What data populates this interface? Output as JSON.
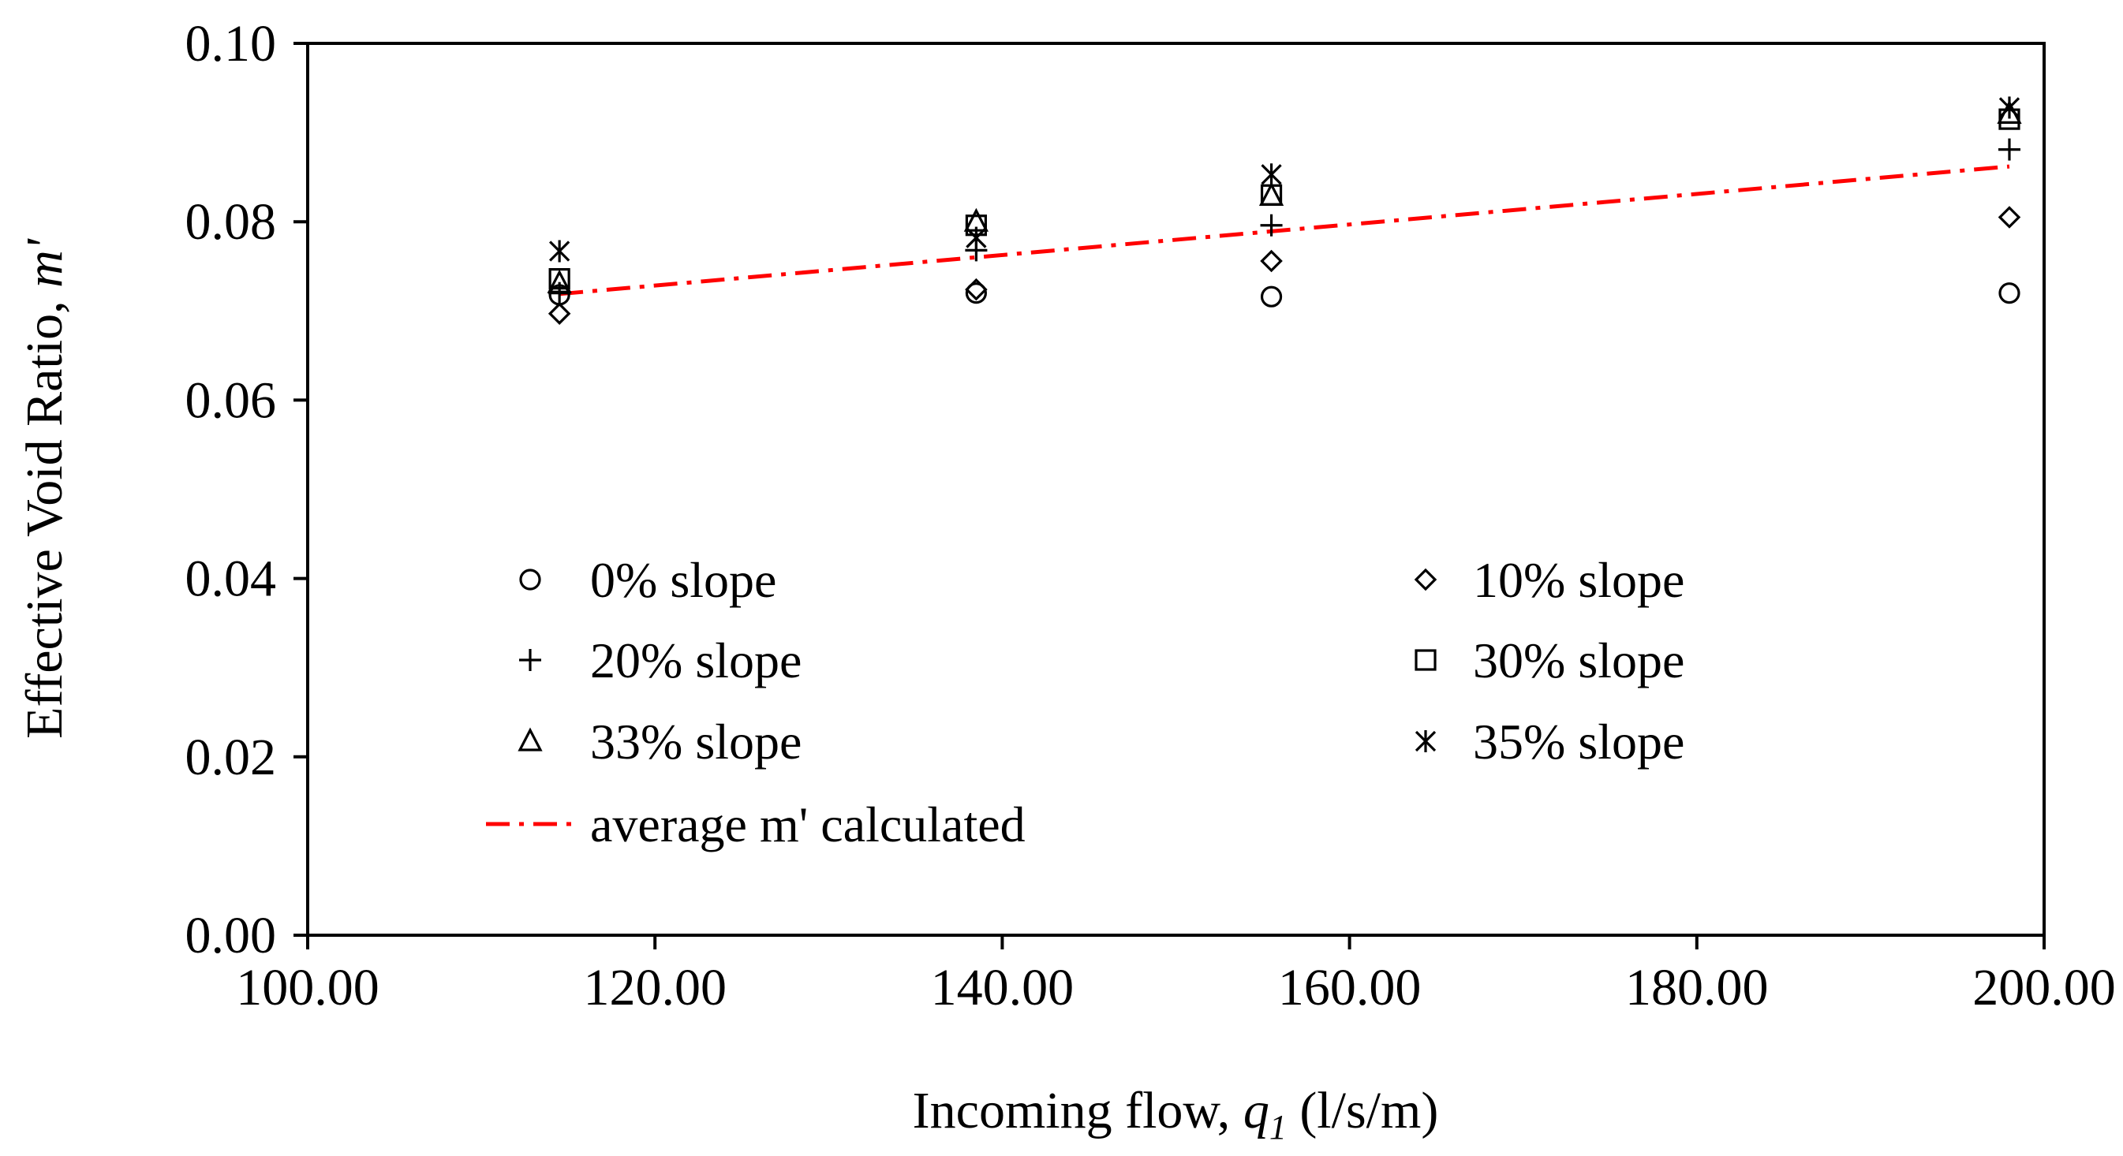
{
  "chart_data": {
    "type": "scatter",
    "xlabel_prefix": "Incoming  flow, ",
    "xlabel_var": "q",
    "xlabel_sub": "1",
    "xlabel_suffix": " (l/s/m)",
    "ylabel_prefix": "Effective Void Ratio, ",
    "ylabel_var": "m'",
    "xlim": [
      100,
      200
    ],
    "ylim": [
      0,
      0.1
    ],
    "xticks": [
      100,
      120,
      140,
      160,
      180,
      200
    ],
    "yticks": [
      0,
      0.02,
      0.04,
      0.06,
      0.08,
      0.1
    ],
    "xtick_labels": [
      "100.00",
      "120.00",
      "140.00",
      "160.00",
      "180.00",
      "200.00"
    ],
    "ytick_labels": [
      "0.00",
      "0.02",
      "0.04",
      "0.06",
      "0.08",
      "0.10"
    ],
    "series": [
      {
        "name": "0% slope",
        "marker": "circle",
        "x": [
          114.5,
          138.5,
          155.5,
          198.0
        ],
        "y": [
          0.0718,
          0.072,
          0.0716,
          0.072
        ]
      },
      {
        "name": "10% slope",
        "marker": "diamond",
        "x": [
          114.5,
          138.5,
          155.5,
          198.0
        ],
        "y": [
          0.0697,
          0.0724,
          0.0756,
          0.0805
        ]
      },
      {
        "name": "20% slope",
        "marker": "plus",
        "x": [
          114.5,
          138.5,
          155.5,
          198.0
        ],
        "y": [
          0.072,
          0.0768,
          0.0796,
          0.0881
        ]
      },
      {
        "name": "30% slope",
        "marker": "square",
        "x": [
          114.5,
          138.5,
          155.5,
          198.0
        ],
        "y": [
          0.0736,
          0.0796,
          0.083,
          0.0915
        ]
      },
      {
        "name": "33% slope",
        "marker": "triangle",
        "x": [
          114.5,
          138.5,
          155.5,
          198.0
        ],
        "y": [
          0.0731,
          0.08,
          0.0829,
          0.0921
        ]
      },
      {
        "name": "35% slope",
        "marker": "asterisk",
        "x": [
          114.5,
          138.5,
          155.5,
          198.0
        ],
        "y": [
          0.0767,
          0.0782,
          0.0853,
          0.0928
        ]
      }
    ],
    "trendline": {
      "name": "average m' calculated",
      "x": [
        114.5,
        198.0
      ],
      "y": [
        0.0719,
        0.0862
      ],
      "color": "#ff0000",
      "style": "dash-dot"
    },
    "legend": {
      "left_column": [
        "0% slope",
        "20% slope",
        "33% slope"
      ],
      "right_column": [
        "10% slope",
        "30% slope",
        "35% slope"
      ],
      "line_entry": "average m' calculated",
      "placement": "inside-lower-center"
    }
  }
}
